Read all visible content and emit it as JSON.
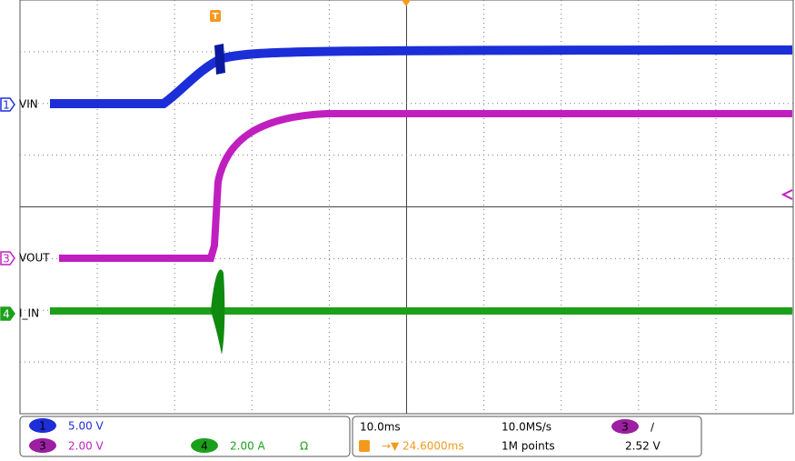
{
  "channels": [
    {
      "number": "1",
      "label": "VIN",
      "scale": "5.00 V"
    },
    {
      "number": "3",
      "label": "VOUT",
      "scale": "2.00 V"
    },
    {
      "number": "4",
      "label": "I_IN",
      "scale": "2.00 A",
      "impedance": "Ω"
    }
  ],
  "trigger_marker": "T",
  "timebase": {
    "scale": "10.0ms",
    "sample_rate": "10.0MS/s",
    "position": "24.6000ms",
    "record_length": "1M points"
  },
  "trigger": {
    "source": "3",
    "slope": "∕",
    "level": "2.52 V"
  }
}
